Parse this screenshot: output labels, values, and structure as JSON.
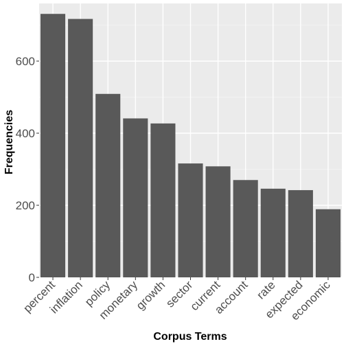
{
  "chart_data": {
    "type": "bar",
    "title": "",
    "xlabel": "Corpus Terms",
    "ylabel": "Frequencies",
    "categories": [
      "percent",
      "inflation",
      "policy",
      "monetary",
      "growth",
      "sector",
      "current",
      "account",
      "rate",
      "expected",
      "economic"
    ],
    "values": [
      731,
      717,
      509,
      441,
      427,
      316,
      308,
      270,
      246,
      242,
      189
    ],
    "ylim": [
      0,
      760
    ],
    "yticks": [
      0,
      200,
      400,
      600
    ],
    "ytick_labels": [
      "0",
      "200",
      "400",
      "600"
    ],
    "grid": true,
    "legend": "none",
    "colors": {
      "panel_background": "#ebebeb",
      "grid_major": "#ffffff",
      "grid_minor": "#f5f5f5",
      "bar": "#595959",
      "tick_text": "#4d4d4d",
      "tick_mark": "#333333"
    }
  }
}
